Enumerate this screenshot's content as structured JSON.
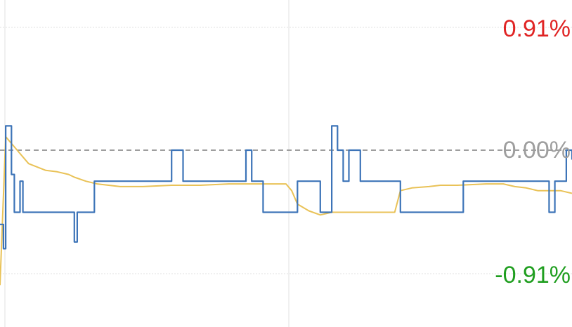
{
  "colors": {
    "price_line": "#3d74b8",
    "avg_line": "#e9c257",
    "up": "#e02424",
    "zero": "#9e9e9e",
    "down": "#1f9e1f",
    "grid": "#e0e0e0"
  },
  "labels": {
    "top": "0.91%",
    "mid": "0.00%",
    "bottom": "-0.91%"
  },
  "chart_data": {
    "type": "line",
    "y_unit": "%",
    "ylim": [
      -1.0,
      1.03
    ],
    "y_ticks": [
      "0.91%",
      "0.00%",
      "-0.91%"
    ],
    "zero_line": "dashed",
    "grid": true,
    "x_range": [
      0,
      100
    ],
    "series": [
      {
        "role": "price",
        "x": [
          0,
          0.6,
          1,
          1.5,
          2,
          2.5,
          3,
          3.5,
          4,
          4.5,
          5,
          5.5,
          6,
          6.5,
          7,
          7.5,
          8,
          9,
          10,
          11,
          12,
          13,
          13.5,
          14,
          14.5,
          15,
          15.5,
          16,
          16.5,
          17,
          18,
          19,
          20,
          21,
          22,
          23,
          24,
          25,
          26,
          27,
          28,
          29,
          30,
          31,
          32,
          33,
          34,
          35,
          36,
          37,
          38,
          39,
          40,
          41,
          42,
          43,
          44,
          45,
          46,
          47,
          48,
          49,
          50,
          51,
          52,
          53,
          54,
          55,
          56,
          57,
          58,
          59,
          60,
          61,
          62,
          63,
          64,
          65,
          66,
          67,
          68,
          69,
          69.5,
          70,
          70.5,
          71,
          72,
          73,
          74,
          75,
          76,
          77,
          78,
          79,
          80,
          81,
          82,
          83,
          84,
          85,
          86,
          87,
          88,
          89,
          90,
          91,
          92,
          93,
          94,
          95,
          96,
          97,
          98,
          99,
          100
        ],
        "values": [
          -0.55,
          -0.73,
          0.18,
          0.18,
          -0.18,
          -0.46,
          -0.46,
          -0.23,
          -0.46,
          -0.46,
          -0.46,
          -0.46,
          -0.46,
          -0.46,
          -0.46,
          -0.46,
          -0.46,
          -0.46,
          -0.46,
          -0.46,
          -0.46,
          -0.68,
          -0.46,
          -0.46,
          -0.46,
          -0.46,
          -0.46,
          -0.46,
          -0.23,
          -0.23,
          -0.23,
          -0.23,
          -0.23,
          -0.23,
          -0.23,
          -0.23,
          -0.23,
          -0.23,
          -0.23,
          -0.23,
          -0.23,
          -0.23,
          0.0,
          0.0,
          -0.23,
          -0.23,
          -0.23,
          -0.23,
          -0.23,
          -0.23,
          -0.23,
          -0.23,
          -0.23,
          -0.23,
          -0.23,
          0.0,
          -0.23,
          -0.23,
          -0.46,
          -0.46,
          -0.46,
          -0.46,
          -0.46,
          -0.46,
          -0.23,
          -0.23,
          -0.23,
          -0.23,
          -0.46,
          -0.46,
          0.18,
          0.0,
          -0.23,
          0.0,
          0.0,
          -0.23,
          -0.23,
          -0.23,
          -0.23,
          -0.23,
          -0.23,
          -0.23,
          -0.23,
          -0.46,
          -0.46,
          -0.46,
          -0.46,
          -0.46,
          -0.46,
          -0.46,
          -0.46,
          -0.46,
          -0.46,
          -0.46,
          -0.46,
          -0.23,
          -0.23,
          -0.23,
          -0.23,
          -0.23,
          -0.23,
          -0.23,
          -0.23,
          -0.23,
          -0.23,
          -0.23,
          -0.23,
          -0.23,
          -0.23,
          -0.23,
          -0.46,
          -0.23,
          -0.23,
          0.0,
          -0.07
        ]
      },
      {
        "role": "average",
        "x": [
          0,
          1,
          3,
          5,
          8,
          10,
          12,
          13,
          15,
          17,
          19,
          21,
          25,
          30,
          35,
          40,
          45,
          50,
          51,
          52,
          54,
          56,
          58,
          60,
          62,
          65,
          68,
          69,
          70,
          72,
          75,
          77,
          80,
          85,
          88,
          90,
          92,
          94,
          95,
          98,
          100
        ],
        "values": [
          -1.0,
          0.1,
          0.0,
          -0.1,
          -0.15,
          -0.16,
          -0.18,
          -0.2,
          -0.23,
          -0.25,
          -0.26,
          -0.27,
          -0.27,
          -0.26,
          -0.26,
          -0.25,
          -0.25,
          -0.25,
          -0.3,
          -0.4,
          -0.45,
          -0.48,
          -0.46,
          -0.46,
          -0.46,
          -0.46,
          -0.46,
          -0.46,
          -0.3,
          -0.28,
          -0.27,
          -0.26,
          -0.26,
          -0.25,
          -0.25,
          -0.27,
          -0.28,
          -0.3,
          -0.3,
          -0.3,
          -0.32
        ]
      }
    ]
  }
}
